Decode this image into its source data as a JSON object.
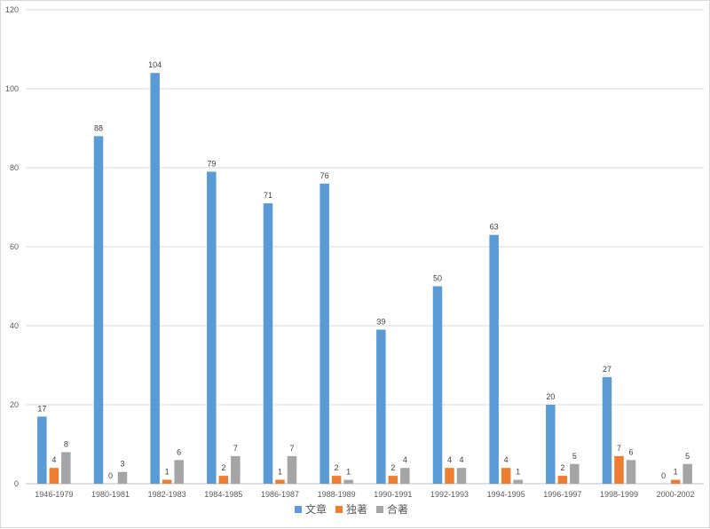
{
  "chart_data": {
    "type": "bar",
    "categories": [
      "1946-1979",
      "1980-1981",
      "1982-1983",
      "1984-1985",
      "1986-1987",
      "1988-1989",
      "1990-1991",
      "1992-1993",
      "1994-1995",
      "1996-1997",
      "1998-1999",
      "2000-2002"
    ],
    "series": [
      {
        "name": "文章",
        "color": "#5b9bd5",
        "values": [
          17,
          88,
          104,
          79,
          71,
          76,
          39,
          50,
          63,
          20,
          27,
          0
        ]
      },
      {
        "name": "独著",
        "color": "#ed7d31",
        "values": [
          4,
          0,
          1,
          2,
          1,
          2,
          2,
          4,
          4,
          2,
          7,
          1
        ]
      },
      {
        "name": "合著",
        "color": "#a5a5a5",
        "values": [
          8,
          3,
          6,
          7,
          7,
          1,
          4,
          4,
          1,
          5,
          6,
          5
        ]
      }
    ],
    "ylim": [
      0,
      120
    ],
    "yticks": [
      0,
      20,
      40,
      60,
      80,
      100,
      120
    ],
    "grid": true,
    "legend_position": "bottom",
    "data_labels": true
  }
}
